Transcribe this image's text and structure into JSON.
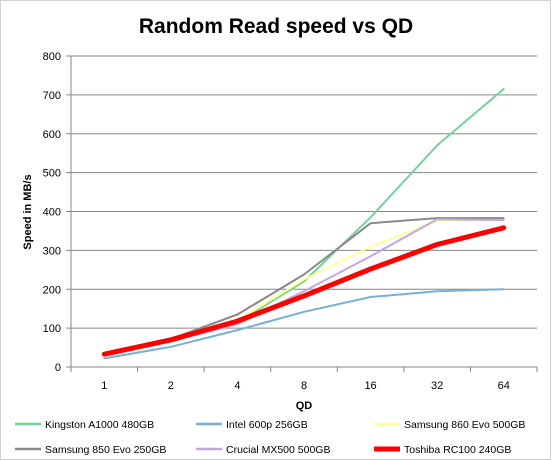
{
  "chart_data": {
    "type": "line",
    "title": "Random Read speed vs QD",
    "xlabel": "QD",
    "ylabel": "Speed in MB/s",
    "categories": [
      "1",
      "2",
      "4",
      "8",
      "16",
      "32",
      "64"
    ],
    "ylim": [
      0,
      800
    ],
    "yticks": [
      "0",
      "100",
      "200",
      "300",
      "400",
      "500",
      "600",
      "700",
      "800"
    ],
    "grid": true,
    "legend_position": "bottom",
    "series": [
      {
        "name": "Kingston A1000 480GB",
        "color": "#77d09a",
        "values": [
          30,
          65,
          115,
          220,
          385,
          570,
          715
        ]
      },
      {
        "name": "Intel 600p 256GB",
        "color": "#78afd8",
        "values": [
          22,
          52,
          95,
          142,
          180,
          195,
          200
        ]
      },
      {
        "name": "Samsung 860 Evo 500GB",
        "color": "#ffff99",
        "values": [
          32,
          68,
          120,
          225,
          310,
          375,
          378
        ]
      },
      {
        "name": "Samsung 850 Evo 250GB",
        "color": "#8a8a8a",
        "values": [
          33,
          72,
          135,
          238,
          370,
          383,
          383
        ]
      },
      {
        "name": "Crucial MX500 500GB",
        "color": "#c5a6e0",
        "values": [
          31,
          66,
          110,
          195,
          285,
          380,
          378
        ]
      },
      {
        "name": "Toshiba RC100 240GB",
        "color": "#ff0000",
        "values": [
          33,
          70,
          118,
          183,
          252,
          315,
          358
        ]
      }
    ]
  }
}
